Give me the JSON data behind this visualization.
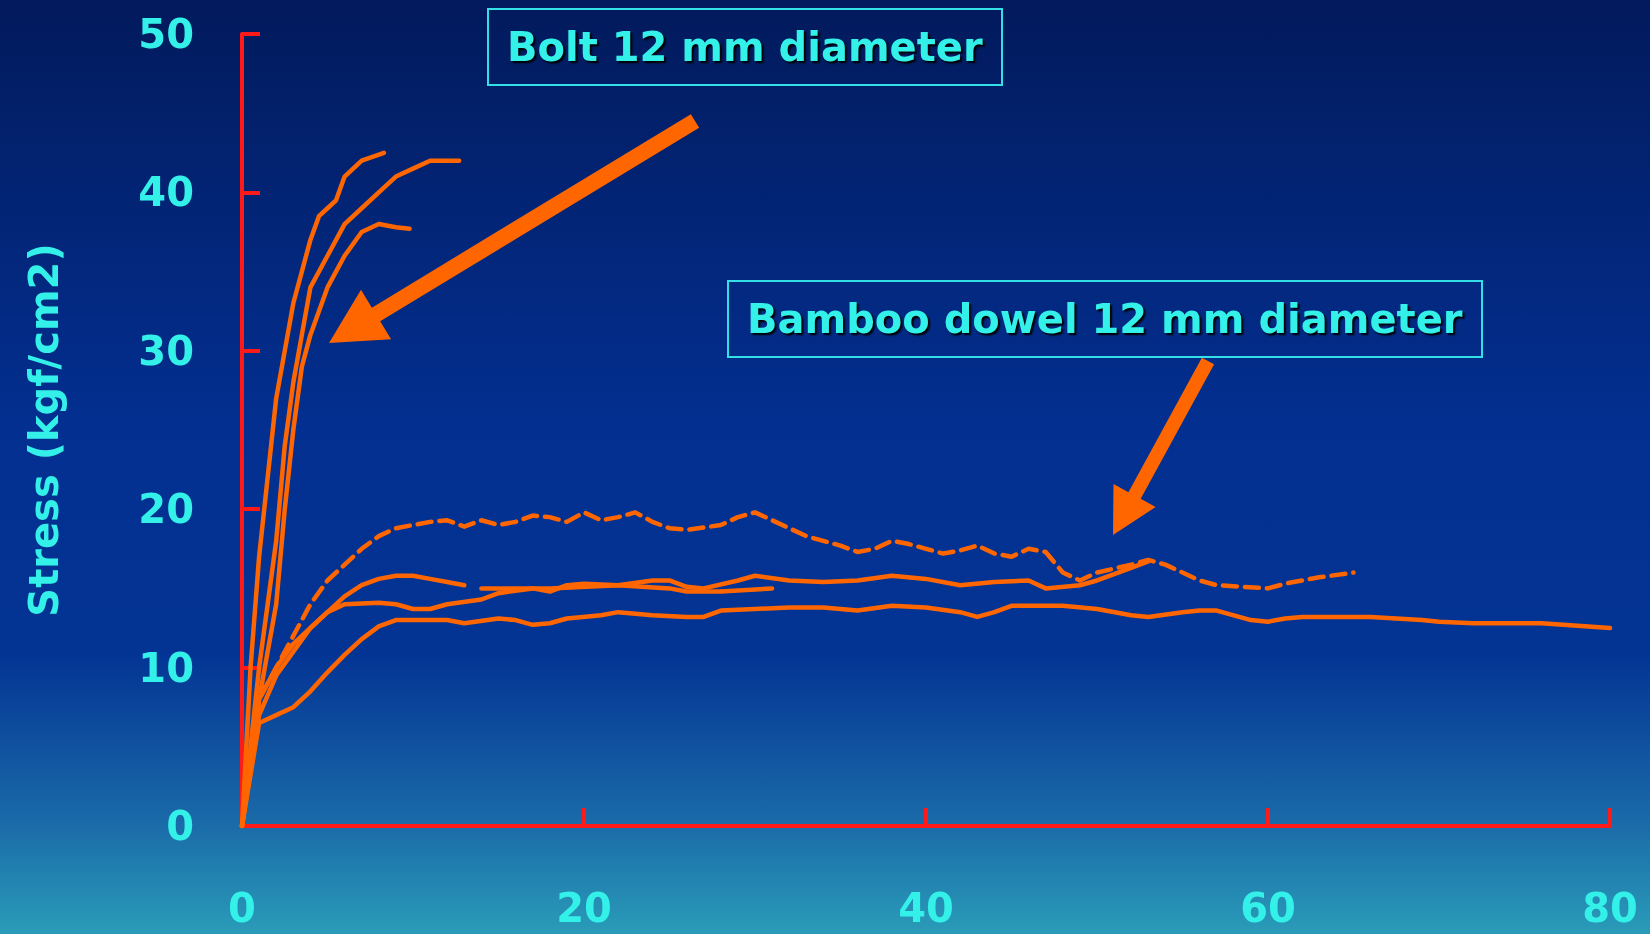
{
  "chart_data": {
    "type": "line",
    "ylabel": "Stress (kgf/cm2)",
    "annotations": [
      "Bolt 12 mm diameter",
      "Bamboo dowel 12 mm diameter"
    ],
    "xlim": [
      0,
      80
    ],
    "ylim": [
      0,
      50
    ],
    "xticks": [
      0,
      20,
      40,
      60,
      80
    ],
    "yticks": [
      0,
      10,
      20,
      30,
      40,
      50
    ],
    "marker": "none",
    "series": [
      {
        "color": "#ff6600",
        "line_style": "solid",
        "x": [
          0,
          0.5,
          1,
          1.5,
          2,
          2.5,
          3,
          3.5,
          4,
          4.5,
          5,
          5.5,
          6,
          7,
          8.3
        ],
        "values": [
          0,
          10,
          17,
          22,
          27,
          30,
          33,
          35,
          37,
          38.5,
          39,
          39.5,
          41,
          42,
          42.5
        ]
      },
      {
        "color": "#ff6600",
        "line_style": "solid",
        "x": [
          0,
          1,
          2,
          2.5,
          3,
          3.5,
          4,
          5,
          6,
          7,
          8,
          9,
          10,
          11,
          12.7
        ],
        "values": [
          0,
          10,
          18,
          24,
          28,
          31,
          34,
          36,
          38,
          39,
          40,
          41,
          41.5,
          42,
          42
        ]
      },
      {
        "color": "#ff6600",
        "line_style": "solid",
        "x": [
          0,
          1,
          2,
          2.5,
          3,
          3.5,
          4,
          5,
          6,
          7,
          8,
          9,
          9.8
        ],
        "values": [
          0,
          8,
          14,
          20,
          25,
          29,
          31,
          34,
          36,
          37.5,
          38,
          37.8,
          37.7
        ]
      },
      {
        "color": "#ff6600",
        "line_style": "dashed",
        "x": [
          0,
          1,
          2,
          3,
          4,
          5,
          6,
          7,
          8,
          9,
          10,
          11,
          12,
          13,
          14,
          15,
          16,
          17,
          18,
          19,
          20,
          21,
          22,
          23,
          24,
          25,
          26,
          28,
          29,
          30,
          31,
          32,
          33,
          35,
          36,
          37,
          38,
          39,
          40,
          41,
          42,
          43,
          44,
          45,
          46,
          47,
          48,
          49,
          50,
          52,
          53,
          54,
          56,
          57,
          60,
          61,
          63,
          65
        ],
        "values": [
          0,
          8,
          10,
          12,
          14,
          15.5,
          16.5,
          17.5,
          18.3,
          18.8,
          19,
          19.2,
          19.3,
          18.9,
          19.3,
          19,
          19.2,
          19.6,
          19.5,
          19.2,
          19.8,
          19.3,
          19.5,
          19.8,
          19.2,
          18.8,
          18.7,
          19,
          19.5,
          19.8,
          19.3,
          18.8,
          18.3,
          17.7,
          17.3,
          17.5,
          18,
          17.8,
          17.5,
          17.2,
          17.4,
          17.7,
          17.2,
          17,
          17.5,
          17.3,
          16,
          15.5,
          16,
          16.5,
          16.8,
          16.5,
          15.5,
          15.2,
          15,
          15.3,
          15.7,
          16
        ]
      },
      {
        "color": "#ff6600",
        "line_style": "solid",
        "x": [
          0,
          1,
          2,
          3,
          4,
          5,
          6,
          7,
          8,
          9,
          10,
          11,
          12,
          13
        ],
        "values": [
          0,
          8,
          10,
          11.5,
          12.5,
          13.5,
          14.5,
          15.2,
          15.6,
          15.8,
          15.8,
          15.6,
          15.4,
          15.2
        ]
      },
      {
        "color": "#ff6600",
        "line_style": "solid",
        "x": [
          0,
          1,
          2,
          3,
          4,
          5,
          6,
          8,
          9,
          10,
          11,
          12,
          14,
          15,
          17,
          18,
          19,
          20,
          22,
          24,
          25,
          26,
          27,
          29,
          30,
          32,
          34,
          36,
          38,
          40,
          42,
          44,
          46,
          47,
          49,
          50,
          52,
          53
        ],
        "values": [
          0,
          7,
          9.5,
          11,
          12.5,
          13.5,
          14,
          14.1,
          14,
          13.7,
          13.7,
          14,
          14.3,
          14.7,
          15,
          14.8,
          15.2,
          15.3,
          15.2,
          15.5,
          15.5,
          15.1,
          15,
          15.5,
          15.8,
          15.5,
          15.4,
          15.5,
          15.8,
          15.6,
          15.2,
          15.4,
          15.5,
          15,
          15.2,
          15.5,
          16.3,
          16.7
        ]
      },
      {
        "color": "#ff6600",
        "line_style": "solid",
        "x": [
          14,
          18,
          22,
          25,
          26,
          28,
          31
        ],
        "values": [
          15,
          15,
          15.2,
          15,
          14.8,
          14.8,
          15
        ]
      },
      {
        "color": "#ff6600",
        "line_style": "solid",
        "x": [
          0,
          1,
          2,
          3,
          4,
          5,
          6,
          7,
          8,
          9,
          10,
          12,
          13,
          15,
          16,
          17,
          18,
          19,
          21,
          22,
          24,
          26,
          27,
          28,
          30,
          32,
          34,
          36,
          38,
          40,
          42,
          43,
          44,
          45,
          48,
          50,
          52,
          53,
          55,
          56,
          57,
          58,
          59,
          60,
          61,
          62,
          66,
          69,
          70,
          72,
          76,
          80
        ],
        "values": [
          0,
          6.5,
          7,
          7.5,
          8.5,
          9.7,
          10.8,
          11.8,
          12.6,
          13,
          13,
          13,
          12.8,
          13.1,
          13,
          12.7,
          12.8,
          13.1,
          13.3,
          13.5,
          13.3,
          13.2,
          13.2,
          13.6,
          13.7,
          13.8,
          13.8,
          13.6,
          13.9,
          13.8,
          13.5,
          13.2,
          13.5,
          13.9,
          13.9,
          13.7,
          13.3,
          13.2,
          13.5,
          13.6,
          13.6,
          13.3,
          13,
          12.9,
          13.1,
          13.2,
          13.2,
          13,
          12.9,
          12.8,
          12.8,
          12.5
        ]
      }
    ]
  }
}
